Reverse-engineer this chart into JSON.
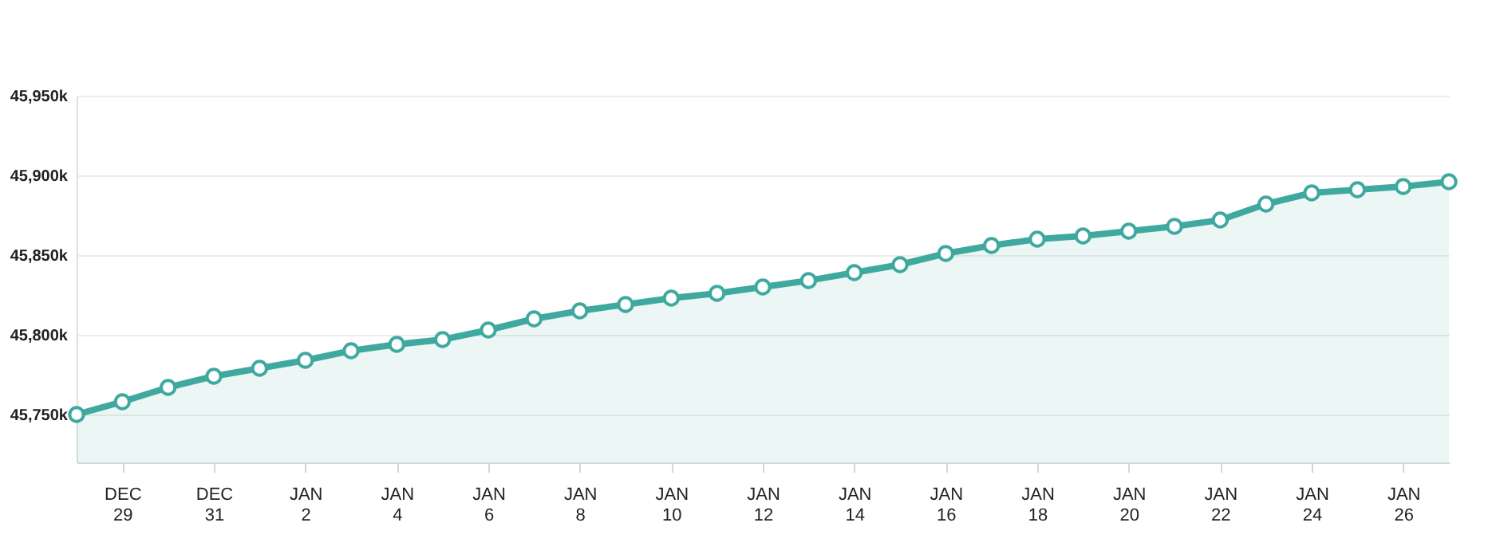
{
  "chart_data": {
    "type": "area",
    "color": "#3fa99f",
    "marker": "circle",
    "grid": "y",
    "categories": [
      null,
      "DEC 29",
      null,
      "DEC 31",
      null,
      "JAN 2",
      null,
      "JAN 4",
      null,
      "JAN 6",
      null,
      "JAN 8",
      null,
      "JAN 10",
      null,
      "JAN 12",
      null,
      "JAN 14",
      null,
      "JAN 16",
      null,
      "JAN 18",
      null,
      "JAN 20",
      null,
      "JAN 22",
      null,
      "JAN 24",
      null,
      "JAN 26",
      null
    ],
    "values": [
      45750,
      45758,
      45767,
      45774,
      45779,
      45784,
      45790,
      45794,
      45797,
      45803,
      45810,
      45815,
      45819,
      45823,
      45826,
      45830,
      45834,
      45839,
      45844,
      45851,
      45856,
      45860,
      45862,
      45865,
      45868,
      45872,
      45882,
      45889,
      45891,
      45893,
      45896
    ],
    "ylim": [
      45720,
      45950
    ],
    "yticks": [
      {
        "value": 45750,
        "label": "45,750k"
      },
      {
        "value": 45800,
        "label": "45,800k"
      },
      {
        "value": 45850,
        "label": "45,850k"
      },
      {
        "value": 45900,
        "label": "45,900k"
      },
      {
        "value": 45950,
        "label": "45,950k"
      }
    ]
  }
}
